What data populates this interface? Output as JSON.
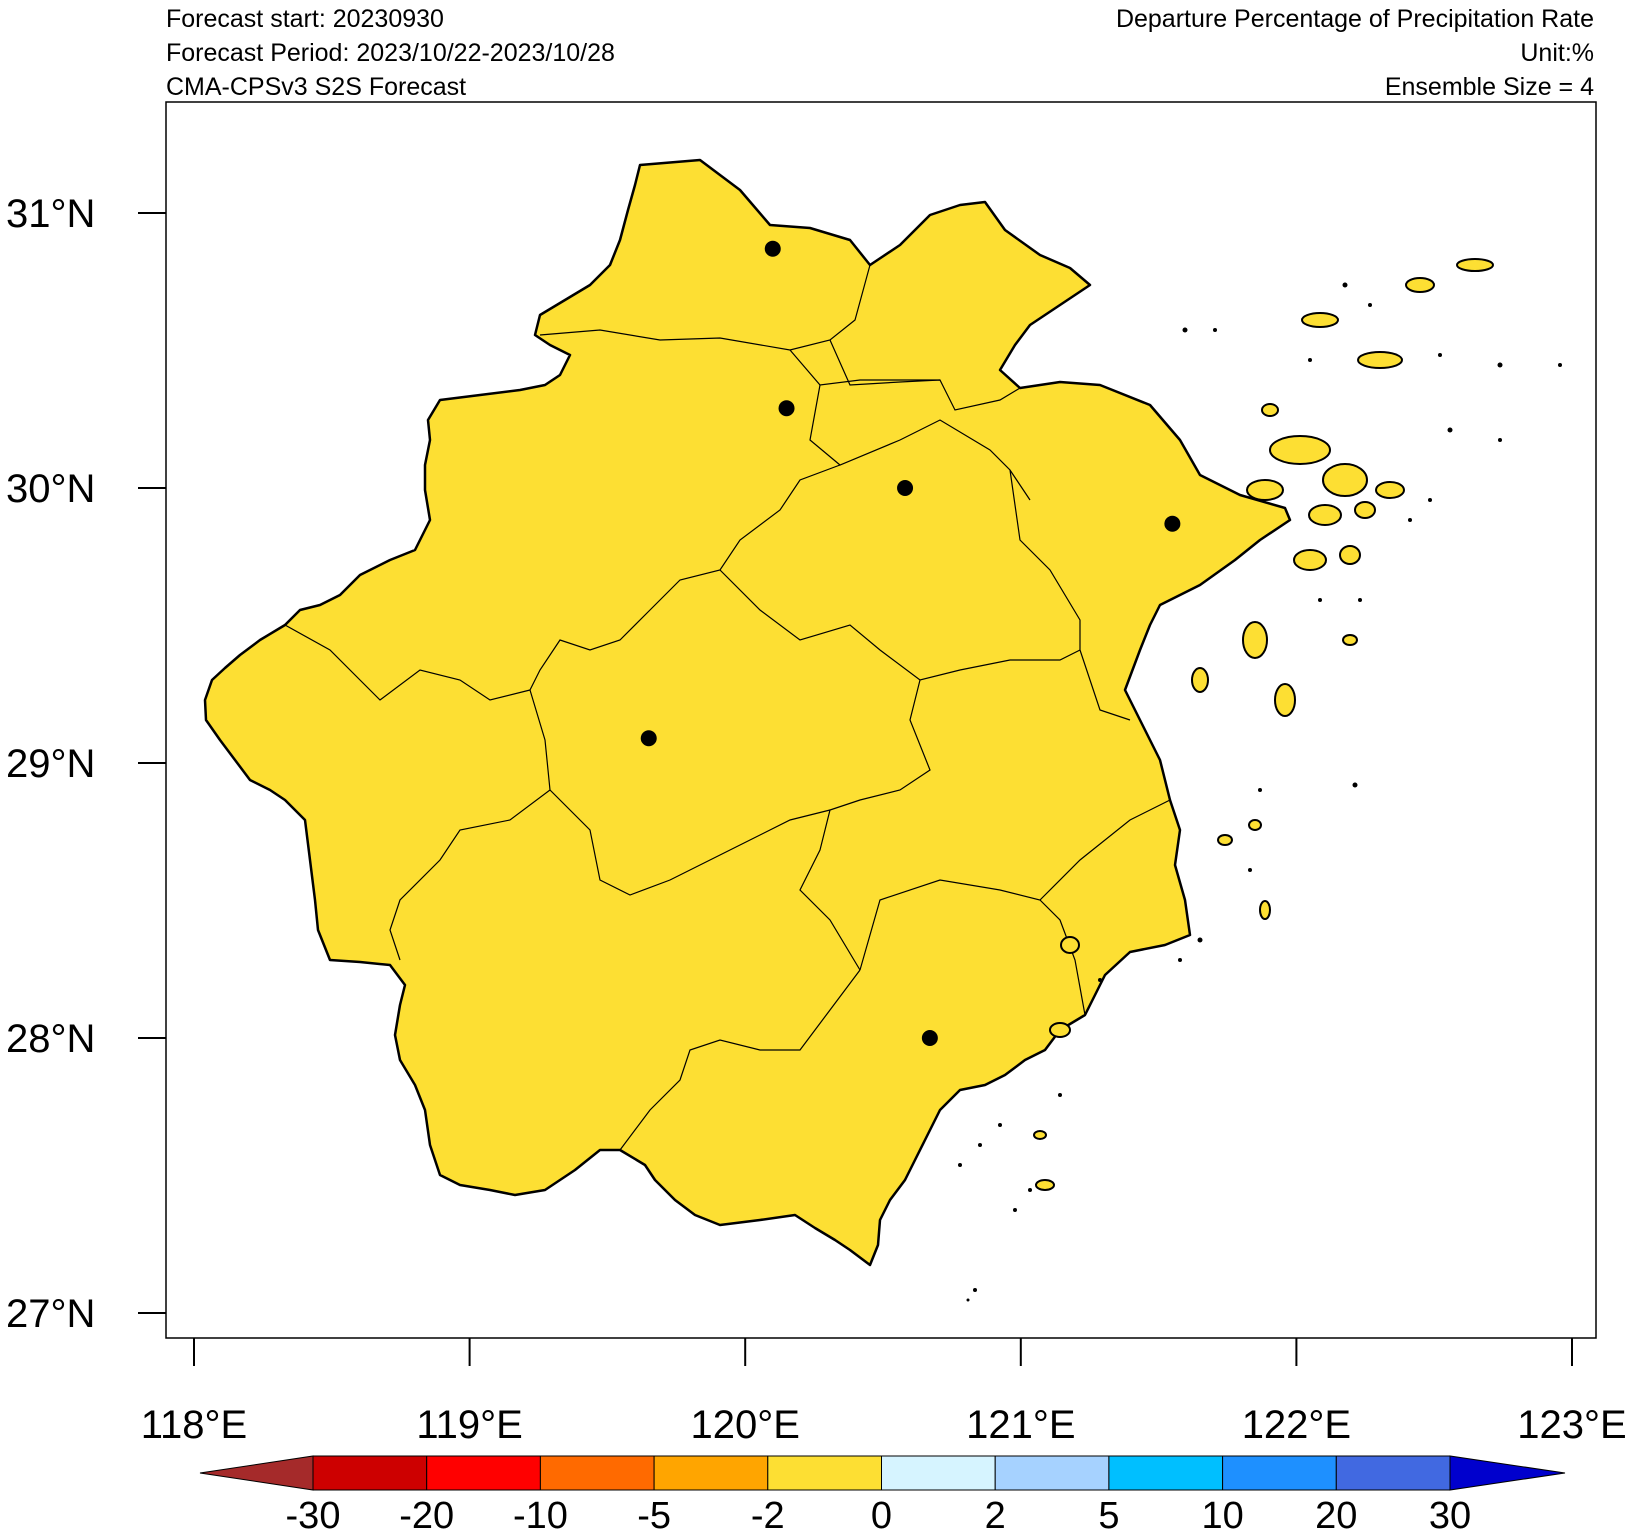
{
  "header": {
    "forecast_start": "Forecast start: 20230930",
    "forecast_period": "Forecast Period: 2023/10/22-2023/10/28",
    "model": "CMA-CPSv3 S2S Forecast",
    "title": "Departure Percentage of Precipitation Rate",
    "unit": "Unit:%",
    "ensemble": "Ensemble Size = 4"
  },
  "map": {
    "lon_ticks": [
      "118°E",
      "119°E",
      "120°E",
      "121°E",
      "122°E",
      "123°E"
    ],
    "lat_ticks": [
      "31°N",
      "30°N",
      "29°N",
      "28°N",
      "27°N"
    ],
    "lon_range": [
      117.9,
      123.1
    ],
    "lat_range": [
      26.9,
      31.4
    ],
    "fill_color": "#FDDF33",
    "fill_category": "-2 to 0",
    "cities": [
      {
        "lon": 120.1,
        "lat": 30.87
      },
      {
        "lon": 120.15,
        "lat": 30.29
      },
      {
        "lon": 120.58,
        "lat": 30.0
      },
      {
        "lon": 121.55,
        "lat": 29.87
      },
      {
        "lon": 119.65,
        "lat": 29.09
      },
      {
        "lon": 120.67,
        "lat": 28.0
      }
    ]
  },
  "colorbar": {
    "labels": [
      "-30",
      "-20",
      "-10",
      "-5",
      "-2",
      "0",
      "2",
      "5",
      "10",
      "20",
      "30"
    ],
    "colors": [
      "#A52A2A",
      "#CD0000",
      "#FF0000",
      "#FF6A00",
      "#FFA500",
      "#FDDF33",
      "#D6F4FF",
      "#A6D2FF",
      "#00BFFF",
      "#1E90FF",
      "#4169E1",
      "#0000CD"
    ]
  }
}
